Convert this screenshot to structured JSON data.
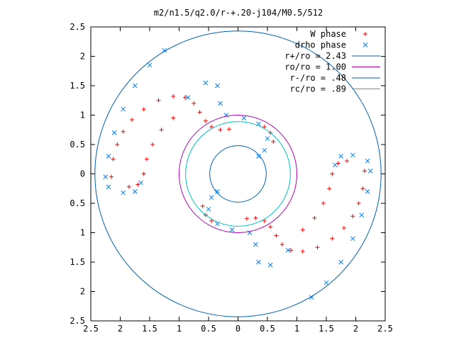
{
  "chart_data": {
    "type": "scatter",
    "title": "m2/n1.5/q2.0/r-+.20-j104/M0.5/512",
    "xlabel": "",
    "ylabel": "",
    "xlim": [
      -2.5,
      2.5
    ],
    "ylim": [
      -2.5,
      2.5
    ],
    "x_ticks": [
      -2.5,
      -2,
      -1.5,
      -1,
      -0.5,
      0,
      0.5,
      1,
      1.5,
      2,
      2.5
    ],
    "y_ticks": [
      -2.5,
      -2,
      -1.5,
      -1,
      -0.5,
      0,
      0.5,
      1,
      1.5,
      2,
      2.5
    ],
    "x_tick_labels": [
      "2.5",
      "2",
      "1.5",
      "1",
      "0.5",
      "0",
      "0.5",
      "1",
      "1.5",
      "2",
      "2.5"
    ],
    "y_tick_labels": [
      "2.5",
      "2",
      "1.5",
      "1",
      "0.5",
      "0",
      "0.5",
      "1",
      "1.5",
      "2",
      "2.5"
    ],
    "grid": false,
    "legend_position": "top-right",
    "series": [
      {
        "name": "W phase",
        "marker": "plus",
        "color": "#ff0000",
        "points": [
          [
            -2.15,
            -0.05
          ],
          [
            -2.12,
            0.25
          ],
          [
            -2.05,
            0.5
          ],
          [
            -1.95,
            0.72
          ],
          [
            -1.8,
            0.92
          ],
          [
            -1.6,
            1.1
          ],
          [
            -1.35,
            1.25
          ],
          [
            -1.1,
            1.32
          ],
          [
            -0.9,
            1.3
          ],
          [
            -0.75,
            1.2
          ],
          [
            -0.65,
            1.05
          ],
          [
            -0.55,
            0.9
          ],
          [
            -0.45,
            0.8
          ],
          [
            -0.3,
            0.75
          ],
          [
            -0.15,
            0.76
          ],
          [
            -1.85,
            -0.22
          ],
          [
            -1.7,
            -0.18
          ],
          [
            -1.6,
            0.0
          ],
          [
            -1.55,
            0.25
          ],
          [
            -1.45,
            0.5
          ],
          [
            -1.3,
            0.75
          ],
          [
            -1.1,
            0.95
          ],
          [
            2.15,
            0.05
          ],
          [
            2.12,
            -0.25
          ],
          [
            2.05,
            -0.5
          ],
          [
            1.95,
            -0.72
          ],
          [
            1.8,
            -0.92
          ],
          [
            1.6,
            -1.1
          ],
          [
            1.35,
            -1.25
          ],
          [
            1.1,
            -1.32
          ],
          [
            0.9,
            -1.3
          ],
          [
            0.75,
            -1.2
          ],
          [
            0.65,
            -1.05
          ],
          [
            0.55,
            -0.9
          ],
          [
            0.45,
            -0.8
          ],
          [
            0.3,
            -0.75
          ],
          [
            0.15,
            -0.76
          ],
          [
            1.85,
            0.22
          ],
          [
            1.7,
            0.18
          ],
          [
            1.6,
            0.0
          ],
          [
            1.55,
            -0.25
          ],
          [
            1.45,
            -0.5
          ],
          [
            1.3,
            -0.75
          ],
          [
            1.1,
            -0.95
          ],
          [
            -0.6,
            -0.55
          ],
          [
            -0.55,
            -0.7
          ],
          [
            -0.45,
            -0.8
          ],
          [
            0.6,
            0.55
          ],
          [
            0.55,
            0.7
          ],
          [
            0.45,
            0.8
          ]
        ]
      },
      {
        "name": "drho phase",
        "marker": "cross",
        "color": "#0080ff",
        "points": [
          [
            -1.25,
            2.1
          ],
          [
            -1.5,
            1.85
          ],
          [
            -1.75,
            1.5
          ],
          [
            -1.95,
            1.1
          ],
          [
            -2.1,
            0.7
          ],
          [
            -2.2,
            0.3
          ],
          [
            -2.25,
            -0.05
          ],
          [
            -2.2,
            -0.22
          ],
          [
            -1.95,
            -0.32
          ],
          [
            -1.75,
            -0.3
          ],
          [
            -1.65,
            -0.15
          ],
          [
            1.25,
            -2.1
          ],
          [
            1.5,
            -1.85
          ],
          [
            1.75,
            -1.5
          ],
          [
            1.95,
            -1.1
          ],
          [
            2.1,
            -0.7
          ],
          [
            2.2,
            -0.3
          ],
          [
            2.25,
            0.05
          ],
          [
            2.2,
            0.22
          ],
          [
            1.95,
            0.32
          ],
          [
            1.75,
            0.3
          ],
          [
            1.65,
            0.15
          ],
          [
            -0.85,
            1.3
          ],
          [
            -0.55,
            1.55
          ],
          [
            -0.35,
            1.5
          ],
          [
            -0.3,
            1.2
          ],
          [
            -0.2,
            1.0
          ],
          [
            0.1,
            0.95
          ],
          [
            0.35,
            0.85
          ],
          [
            0.5,
            0.6
          ],
          [
            0.45,
            0.4
          ],
          [
            0.35,
            0.3
          ],
          [
            0.85,
            -1.3
          ],
          [
            0.55,
            -1.55
          ],
          [
            0.35,
            -1.5
          ],
          [
            0.3,
            -1.2
          ],
          [
            0.2,
            -1.0
          ],
          [
            -0.1,
            -0.95
          ],
          [
            -0.35,
            -0.85
          ],
          [
            -0.5,
            -0.6
          ],
          [
            -0.45,
            -0.4
          ],
          [
            -0.35,
            -0.3
          ]
        ]
      },
      {
        "name": "r+/ro = 2.43",
        "type": "circle",
        "radius": 2.43,
        "color": "#0060ad"
      },
      {
        "name": "ro/ro = 1.00",
        "type": "circle",
        "radius": 1.0,
        "color": "#b000b0"
      },
      {
        "name": "r-/ro = .48",
        "type": "circle",
        "radius": 0.48,
        "color": "#0060ad"
      },
      {
        "name": "rc/ro = .89",
        "type": "circle",
        "radius": 0.89,
        "color": "#00c0c0"
      }
    ]
  }
}
